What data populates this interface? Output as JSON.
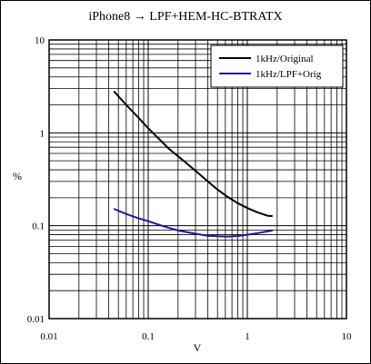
{
  "chart_data": {
    "type": "line",
    "title": "iPhone8 → LPF+HEM-HC-BTRATX",
    "xlabel": "V",
    "ylabel": "%",
    "x_scale": "log",
    "y_scale": "log",
    "xlim": [
      0.01,
      10
    ],
    "ylim": [
      0.01,
      10
    ],
    "x_ticks": [
      "0.01",
      "0.1",
      "1",
      "10"
    ],
    "y_ticks": [
      "0.01",
      "0.1",
      "1",
      "10"
    ],
    "grid": true,
    "legend_position": "top-right",
    "series": [
      {
        "name": "1kHz/Original",
        "color": "#000000",
        "x": [
          0.045,
          0.06,
          0.08,
          0.1,
          0.13,
          0.16,
          0.2,
          0.25,
          0.3,
          0.4,
          0.5,
          0.63,
          0.8,
          1.0,
          1.25,
          1.6,
          1.8
        ],
        "y": [
          2.8,
          2.0,
          1.45,
          1.12,
          0.85,
          0.68,
          0.56,
          0.46,
          0.39,
          0.3,
          0.245,
          0.205,
          0.175,
          0.155,
          0.14,
          0.128,
          0.127
        ]
      },
      {
        "name": "1kHz/LPF+Orig",
        "color": "#1a1aa6",
        "x": [
          0.045,
          0.06,
          0.08,
          0.1,
          0.13,
          0.16,
          0.2,
          0.25,
          0.3,
          0.4,
          0.5,
          0.63,
          0.8,
          1.0,
          1.25,
          1.6,
          1.8
        ],
        "y": [
          0.152,
          0.134,
          0.12,
          0.112,
          0.102,
          0.095,
          0.089,
          0.085,
          0.082,
          0.078,
          0.077,
          0.0765,
          0.0775,
          0.08,
          0.083,
          0.087,
          0.089
        ]
      }
    ]
  }
}
